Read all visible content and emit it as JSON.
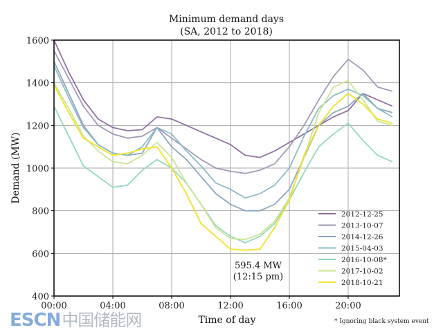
{
  "chart_data": {
    "type": "line",
    "title": "Minimum demand days",
    "subtitle": "(SA,  2012 to 2018)",
    "xlabel": "Time of day",
    "ylabel": "Demand (MW)",
    "xlim": [
      0,
      24
    ],
    "ylim": [
      400,
      1600
    ],
    "xticks": [
      "00:00",
      "04:00",
      "08:00",
      "12:00",
      "16:00",
      "20:00"
    ],
    "yticks": [
      "400",
      "600",
      "800",
      "1000",
      "1200",
      "1400",
      "1600"
    ],
    "grid": true,
    "legend_position": "lower-right",
    "x_hours": [
      0,
      1,
      2,
      3,
      4,
      5,
      6,
      7,
      8,
      9,
      10,
      11,
      12,
      13,
      14,
      15,
      16,
      17,
      18,
      19,
      20,
      21,
      22,
      23
    ],
    "series": [
      {
        "name": "2012-12-25",
        "color": "#8a6a9c",
        "values": [
          1600,
          1450,
          1320,
          1230,
          1190,
          1175,
          1180,
          1240,
          1230,
          1200,
          1170,
          1140,
          1110,
          1060,
          1050,
          1080,
          1120,
          1160,
          1200,
          1240,
          1270,
          1350,
          1320,
          1290
        ]
      },
      {
        "name": "2013-10-07",
        "color": "#9c95b2",
        "values": [
          1550,
          1420,
          1290,
          1200,
          1160,
          1140,
          1150,
          1190,
          1140,
          1090,
          1040,
          1000,
          985,
          975,
          990,
          1020,
          1100,
          1200,
          1320,
          1430,
          1510,
          1460,
          1380,
          1360
        ]
      },
      {
        "name": "2014-12-26",
        "color": "#88a2bb",
        "values": [
          1500,
          1350,
          1200,
          1110,
          1070,
          1060,
          1070,
          1190,
          1100,
          1040,
          960,
          880,
          830,
          800,
          800,
          830,
          900,
          1050,
          1200,
          1260,
          1290,
          1350,
          1280,
          1260
        ]
      },
      {
        "name": "2015-04-03",
        "color": "#86b8c2",
        "values": [
          1480,
          1330,
          1190,
          1110,
          1070,
          1060,
          1100,
          1190,
          1160,
          1080,
          1010,
          930,
          900,
          860,
          880,
          920,
          1000,
          1150,
          1280,
          1340,
          1370,
          1340,
          1280,
          1240
        ]
      },
      {
        "name": "2016-10-08*",
        "color": "#8ed6b6",
        "values": [
          1290,
          1150,
          1010,
          960,
          910,
          920,
          990,
          1040,
          1000,
          930,
          830,
          730,
          680,
          650,
          680,
          740,
          850,
          980,
          1100,
          1160,
          1210,
          1130,
          1060,
          1030
        ]
      },
      {
        "name": "2017-10-02",
        "color": "#c6e48e",
        "values": [
          1400,
          1280,
          1150,
          1080,
          1030,
          1020,
          1060,
          1120,
          1050,
          930,
          830,
          720,
          670,
          665,
          690,
          750,
          860,
          1050,
          1260,
          1380,
          1410,
          1320,
          1220,
          1200
        ]
      },
      {
        "name": "2018-10-21",
        "color": "#f0e22e",
        "values": [
          1390,
          1260,
          1140,
          1100,
          1060,
          1070,
          1090,
          1100,
          1000,
          880,
          740,
          680,
          620,
          615,
          620,
          720,
          850,
          1060,
          1200,
          1290,
          1350,
          1300,
          1230,
          1210
        ]
      }
    ],
    "annotation": {
      "line1": "595.4 MW",
      "line2": "(12:15 pm)"
    },
    "footnote": "* Ignoring black system event"
  },
  "watermark": {
    "latin": "ESCN",
    "cjk": "中国储能网"
  }
}
